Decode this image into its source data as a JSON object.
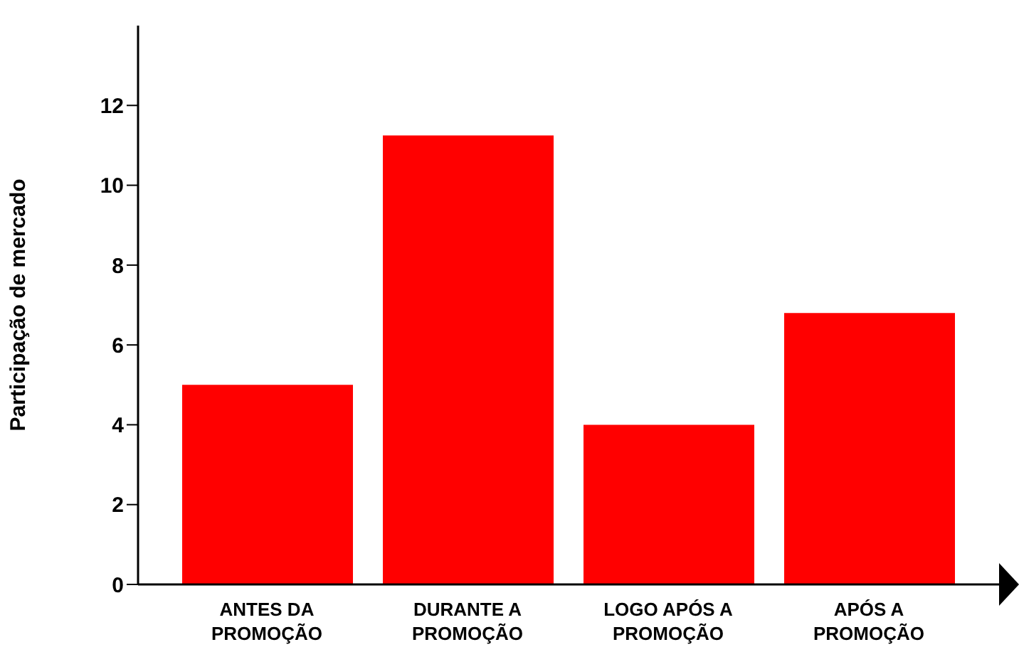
{
  "chart_data": {
    "type": "bar",
    "ylabel": "Participação de mercado",
    "categories": [
      "ANTES DA PROMOÇÃO",
      "DURANTE A PROMOÇÃO",
      "LOGO APÓS A PROMOÇÃO",
      "APÓS A PROMOÇÃO"
    ],
    "values": [
      5,
      11.25,
      4,
      6.8
    ],
    "color": "#ff0000",
    "ylim": [
      0,
      14
    ],
    "yticks": [
      0,
      2,
      4,
      6,
      8,
      10,
      12
    ],
    "grid": false,
    "legend": false
  }
}
